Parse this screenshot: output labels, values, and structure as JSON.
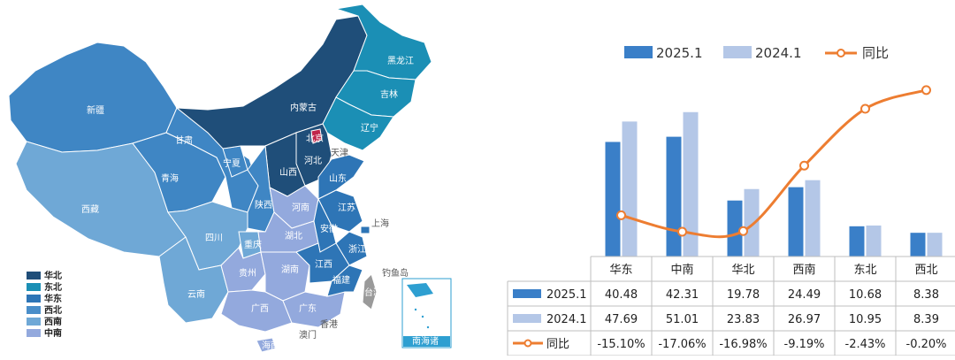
{
  "map": {
    "legend": [
      {
        "label": "华北",
        "color": "#1f4e79"
      },
      {
        "label": "东北",
        "color": "#1b8fb5"
      },
      {
        "label": "华东",
        "color": "#2e75b6"
      },
      {
        "label": "西北",
        "color": "#4a8ec9"
      },
      {
        "label": "西南",
        "color": "#6fa8d6"
      },
      {
        "label": "中南",
        "color": "#93a9dd"
      }
    ],
    "provinces": [
      "新疆",
      "西藏",
      "青海",
      "甘肃",
      "宁夏",
      "内蒙古",
      "黑龙江",
      "吉林",
      "辽宁",
      "北京",
      "天津",
      "河北",
      "山西",
      "陕西",
      "四川",
      "云南",
      "贵州",
      "重庆",
      "湖北",
      "湖南",
      "河南",
      "山东",
      "江苏",
      "安徽",
      "上海",
      "浙江",
      "江西",
      "福建",
      "广东",
      "广西",
      "海南",
      "台湾",
      "香港",
      "澳门",
      "钓鱼岛"
    ],
    "inset_label": "南海诸"
  },
  "chart_data": {
    "type": "bar",
    "categories": [
      "华东",
      "中南",
      "华北",
      "西南",
      "东北",
      "西北"
    ],
    "series": [
      {
        "name": "2025.1",
        "type": "bar",
        "color": "#3a7fc8",
        "values": [
          40.48,
          42.31,
          19.78,
          24.49,
          10.68,
          8.38
        ],
        "labels": [
          "40.48",
          "42.31",
          "19.78",
          "24.49",
          "10.68",
          "8.38"
        ]
      },
      {
        "name": "2024.1",
        "type": "bar",
        "color": "#b4c7e7",
        "values": [
          47.69,
          51.01,
          23.83,
          26.97,
          10.95,
          8.39
        ],
        "labels": [
          "47.69",
          "51.01",
          "23.83",
          "26.97",
          "10.95",
          "8.39"
        ]
      },
      {
        "name": "同比",
        "type": "line",
        "color": "#ed7d31",
        "values": [
          -15.1,
          -17.06,
          -16.98,
          -9.19,
          -2.43,
          -0.2
        ],
        "labels": [
          "-15.10%",
          "-17.06%",
          "-16.98%",
          "-9.19%",
          "-2.43%",
          "-0.20%"
        ]
      }
    ],
    "legend_position": "top",
    "data_table": true
  }
}
